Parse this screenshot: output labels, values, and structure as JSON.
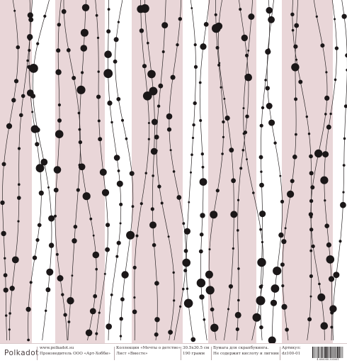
{
  "pattern": {
    "stripe_color": "#e9d6d8",
    "background_color": "#ffffff",
    "line_color": "#2a2526",
    "dot_color": "#1b1718"
  },
  "footer": {
    "logo": "Polkadot",
    "site": "www.polkadot.su",
    "maker": "Производитель ООО «Арт-Хобби»",
    "collection": "Коллекция «Мечты о детстве»",
    "sheet": "Лист «Вместе»",
    "size": "30.5х30.5 см",
    "weight": "190 грамм",
    "paper_type": "Бумага для скрапбукинга.",
    "paper_note": "Не содержит кислоту и лигнин",
    "article_label": "Артикул:",
    "article_value": "dz100-01",
    "barcode_number": "4 606088 305061"
  }
}
